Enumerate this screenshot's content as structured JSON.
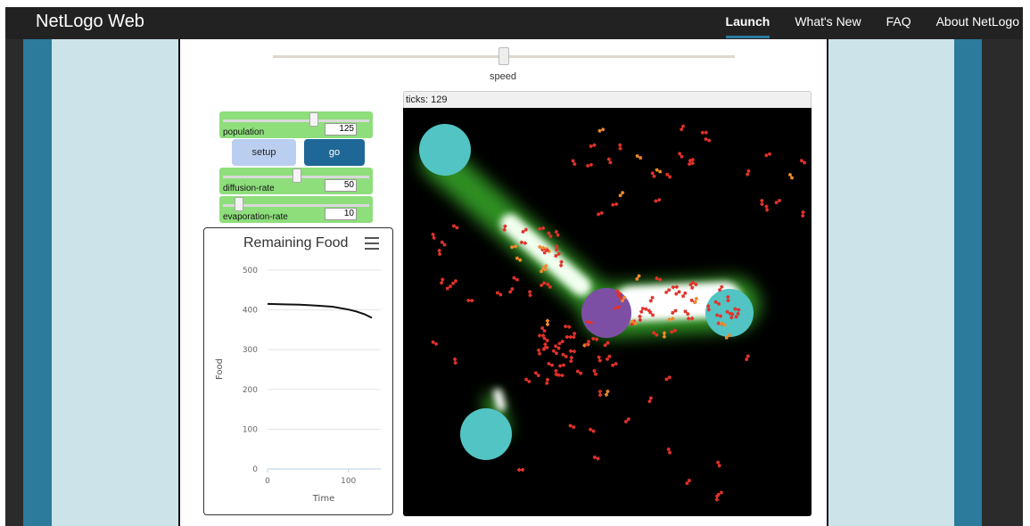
{
  "nav": {
    "brand": "NetLogo Web",
    "links": [
      "Launch",
      "What's New",
      "FAQ",
      "About NetLogo"
    ]
  },
  "speed": {
    "label": "speed",
    "value": 0.5
  },
  "widgets": {
    "population": {
      "label": "population",
      "value": "125",
      "fraction": 0.62
    },
    "setup": "setup",
    "go": "go",
    "diffusion_rate": {
      "label": "diffusion-rate",
      "value": "50",
      "fraction": 0.5
    },
    "evaporation_rate": {
      "label": "evaporation-rate",
      "value": "10",
      "fraction": 0.1
    }
  },
  "world": {
    "ticks": "ticks: 129"
  },
  "chart_data": {
    "type": "line",
    "title": "Remaining Food",
    "xlabel": "Time",
    "ylabel": "Food",
    "xlim": [
      0,
      140
    ],
    "ylim": [
      0,
      500
    ],
    "yticks": [
      "0",
      "100",
      "200",
      "300",
      "400",
      "500"
    ],
    "xticks": [
      "0",
      "100"
    ],
    "grid": true,
    "series": [
      {
        "x": [
          0,
          20,
          40,
          60,
          80,
          100,
          110,
          120,
          129
        ],
        "y": [
          415,
          414,
          413,
          411,
          408,
          401,
          396,
          389,
          380
        ]
      }
    ]
  },
  "colors": {
    "food": "#52c4c4",
    "nest": "#7d4fa4",
    "ant": "#e2322a",
    "chemical": "#4caf3a"
  }
}
